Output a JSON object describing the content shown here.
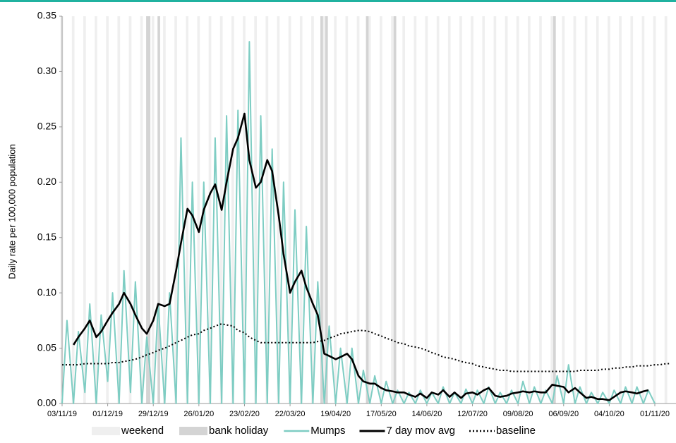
{
  "chart_data": {
    "type": "line",
    "y_label": "Daily rate per 100,000 population",
    "x": [
      "03/11/19",
      "06/11/19",
      "10/11/19",
      "13/11/19",
      "17/11/19",
      "20/11/19",
      "24/11/19",
      "27/11/19",
      "01/12/19",
      "04/12/19",
      "08/12/19",
      "11/12/19",
      "15/12/19",
      "18/12/19",
      "22/12/19",
      "25/12/19",
      "29/12/19",
      "01/01/20",
      "05/01/20",
      "08/01/20",
      "12/01/20",
      "15/01/20",
      "19/01/20",
      "22/01/20",
      "26/01/20",
      "29/01/20",
      "02/02/20",
      "05/02/20",
      "09/02/20",
      "12/02/20",
      "16/02/20",
      "19/02/20",
      "23/02/20",
      "26/02/20",
      "01/03/20",
      "04/03/20",
      "08/03/20",
      "11/03/20",
      "15/03/20",
      "18/03/20",
      "22/03/20",
      "25/03/20",
      "29/03/20",
      "01/04/20",
      "05/04/20",
      "08/04/20",
      "12/04/20",
      "15/04/20",
      "19/04/20",
      "22/04/20",
      "26/04/20",
      "29/04/20",
      "03/05/20",
      "06/05/20",
      "10/05/20",
      "13/05/20",
      "17/05/20",
      "20/05/20",
      "24/05/20",
      "27/05/20",
      "31/05/20",
      "03/06/20",
      "07/06/20",
      "10/06/20",
      "14/06/20",
      "17/06/20",
      "21/06/20",
      "24/06/20",
      "28/06/20",
      "01/07/20",
      "05/07/20",
      "08/07/20",
      "12/07/20",
      "15/07/20",
      "19/07/20",
      "22/07/20",
      "26/07/20",
      "29/07/20",
      "02/08/20",
      "05/08/20",
      "09/08/20",
      "12/08/20",
      "16/08/20",
      "19/08/20",
      "23/08/20",
      "26/08/20",
      "30/08/20",
      "02/09/20",
      "06/09/20",
      "09/09/20",
      "13/09/20",
      "16/09/20",
      "20/09/20",
      "23/09/20",
      "27/09/20",
      "30/09/20",
      "04/10/20",
      "07/10/20",
      "11/10/20",
      "14/10/20",
      "18/10/20",
      "21/10/20",
      "25/10/20",
      "28/10/20",
      "01/11/20",
      "04/11/20",
      "08/11/20",
      "11/11/20"
    ],
    "series": [
      {
        "name": "Mumps",
        "color": "#7ecdc3",
        "width": 2,
        "dash": "none",
        "values": [
          0,
          0.075,
          0,
          0.065,
          0.01,
          0.09,
          0,
          0.08,
          0.02,
          0.1,
          0,
          0.12,
          0.01,
          0.11,
          0,
          0.06,
          0,
          0.09,
          0,
          0.1,
          0,
          0.24,
          0,
          0.2,
          0,
          0.2,
          0,
          0.24,
          0,
          0.26,
          0,
          0.265,
          0,
          0.327,
          0,
          0.26,
          0,
          0.23,
          0,
          0.2,
          0,
          0.175,
          0,
          0.16,
          0,
          0.11,
          0,
          0.07,
          0,
          0.05,
          0,
          0.05,
          0,
          0.03,
          0,
          0.025,
          0,
          0.02,
          0,
          0.012,
          0,
          0.01,
          0,
          0.012,
          0,
          0.01,
          0,
          0.015,
          0,
          0.01,
          0,
          0.013,
          0,
          0.012,
          0,
          0.015,
          0,
          0.01,
          0,
          0.012,
          0,
          0.02,
          0,
          0.015,
          0,
          0.012,
          0,
          0.025,
          0,
          0.035,
          0,
          0.015,
          0,
          0.01,
          0,
          0.01,
          0,
          0.012,
          0,
          0.015,
          0,
          0.015,
          0,
          0.012,
          0,
          null,
          null,
          null
        ]
      },
      {
        "name": "7 day mov avg",
        "color": "#000000",
        "width": 2.6,
        "dash": "none",
        "values": [
          null,
          null,
          0.053,
          0.06,
          0.068,
          0.075,
          0.06,
          0.065,
          0.075,
          0.082,
          0.09,
          0.1,
          0.09,
          0.08,
          0.068,
          0.063,
          0.075,
          0.09,
          0.088,
          0.09,
          0.12,
          0.145,
          0.176,
          0.17,
          0.155,
          0.175,
          0.19,
          0.198,
          0.175,
          0.2,
          0.23,
          0.24,
          0.262,
          0.22,
          0.195,
          0.2,
          0.22,
          0.21,
          0.17,
          0.135,
          0.1,
          0.11,
          0.12,
          0.105,
          0.09,
          0.08,
          0.045,
          0.043,
          0.04,
          0.042,
          0.045,
          0.04,
          0.025,
          0.02,
          0.018,
          0.018,
          0.014,
          0.012,
          0.011,
          0.01,
          0.01,
          0.008,
          0.006,
          0.009,
          0.005,
          0.01,
          0.008,
          0.012,
          0.006,
          0.01,
          0.005,
          0.009,
          0.01,
          0.008,
          0.012,
          0.014,
          0.007,
          0.006,
          0.007,
          0.009,
          0.01,
          0.011,
          0.01,
          0.011,
          0.01,
          0.01,
          0.017,
          0.016,
          0.015,
          0.01,
          0.014,
          0.01,
          0.005,
          0.006,
          0.004,
          0.004,
          0.003,
          0.006,
          0.01,
          0.011,
          0.01,
          0.009,
          0.011,
          0.012,
          null,
          null,
          null,
          null
        ]
      },
      {
        "name": "baseline",
        "color": "#000000",
        "width": 2,
        "dash": "2 3",
        "values": [
          0.035,
          0.035,
          0.035,
          0.035,
          0.036,
          0.036,
          0.036,
          0.036,
          0.036,
          0.037,
          0.037,
          0.038,
          0.039,
          0.04,
          0.042,
          0.044,
          0.046,
          0.048,
          0.05,
          0.052,
          0.055,
          0.057,
          0.06,
          0.062,
          0.063,
          0.066,
          0.068,
          0.07,
          0.072,
          0.071,
          0.07,
          0.066,
          0.064,
          0.06,
          0.057,
          0.055,
          0.055,
          0.055,
          0.055,
          0.055,
          0.055,
          0.055,
          0.055,
          0.055,
          0.055,
          0.056,
          0.057,
          0.059,
          0.061,
          0.063,
          0.064,
          0.065,
          0.066,
          0.066,
          0.065,
          0.063,
          0.061,
          0.059,
          0.057,
          0.055,
          0.054,
          0.052,
          0.051,
          0.05,
          0.048,
          0.046,
          0.044,
          0.042,
          0.041,
          0.04,
          0.038,
          0.037,
          0.036,
          0.034,
          0.033,
          0.032,
          0.031,
          0.03,
          0.03,
          0.029,
          0.029,
          0.029,
          0.029,
          0.029,
          0.029,
          0.029,
          0.029,
          0.029,
          0.029,
          0.029,
          0.029,
          0.03,
          0.03,
          0.03,
          0.03,
          0.031,
          0.031,
          0.032,
          0.032,
          0.033,
          0.033,
          0.034,
          0.034,
          0.034,
          0.035,
          0.035,
          0.036,
          0.036
        ]
      }
    ],
    "bands": [
      {
        "name": "weekend",
        "color": "#efefef"
      },
      {
        "name": "bank holiday",
        "color": "#d4d4d4",
        "dates": [
          "25/12/19",
          "26/12/19",
          "01/01/20",
          "10/04/20",
          "13/04/20",
          "08/05/20",
          "25/05/20",
          "31/08/20"
        ]
      }
    ],
    "xlim": [
      "03/11/19",
      "14/11/20"
    ],
    "xticks": [
      "03/11/19",
      "01/12/19",
      "29/12/19",
      "26/01/20",
      "23/02/20",
      "22/03/20",
      "19/04/20",
      "17/05/20",
      "14/06/20",
      "12/07/20",
      "09/08/20",
      "06/09/20",
      "04/10/20",
      "01/11/20"
    ],
    "ylim": [
      0,
      0.35
    ],
    "yticks": [
      {
        "value": 0,
        "label": "0.00"
      },
      {
        "value": 0.05,
        "label": "0.05"
      },
      {
        "value": 0.1,
        "label": "0.10"
      },
      {
        "value": 0.15,
        "label": "0.15"
      },
      {
        "value": 0.2,
        "label": "0.20"
      },
      {
        "value": 0.25,
        "label": "0.25"
      },
      {
        "value": 0.3,
        "label": "0.30"
      },
      {
        "value": 0.35,
        "label": "0.35"
      }
    ],
    "legend": "bottom"
  }
}
